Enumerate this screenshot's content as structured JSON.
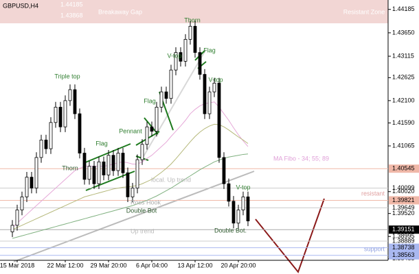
{
  "chart_data": {
    "type": "candlestick",
    "title": "GBPUSD,H4",
    "categories": [
      null,
      "15 Mar 2018",
      null,
      null,
      null,
      null,
      null,
      null,
      null,
      null,
      null,
      "22 Mar 12:00",
      null,
      null,
      null,
      null,
      null,
      null,
      null,
      null,
      "29 Mar 20:00",
      null,
      null,
      null,
      null,
      null,
      null,
      null,
      null,
      "6 Apr 04:00",
      null,
      null,
      null,
      null,
      null,
      null,
      null,
      null,
      "13 Apr 12:00",
      null,
      null,
      null,
      null,
      null,
      null,
      null,
      null,
      "20 Apr 20:00",
      null,
      null
    ],
    "open": [
      1.391,
      1.3925,
      1.396,
      1.399,
      1.4035,
      1.401,
      1.408,
      1.412,
      1.41,
      1.416,
      1.4195,
      1.415,
      1.421,
      1.4235,
      1.418,
      1.409,
      1.403,
      1.406,
      1.402,
      1.407,
      1.404,
      1.4085,
      1.405,
      1.409,
      1.4045,
      1.399,
      1.401,
      1.4075,
      1.411,
      1.415,
      1.414,
      1.4195,
      1.423,
      1.4215,
      1.428,
      1.432,
      1.43,
      1.435,
      1.438,
      1.432,
      1.427,
      1.418,
      1.423,
      1.425,
      1.408,
      1.402,
      1.398,
      1.393,
      1.396,
      1.399
    ],
    "high": [
      1.3937,
      1.3972,
      1.4002,
      1.4047,
      1.4047,
      1.4092,
      1.4132,
      1.4132,
      1.4172,
      1.4207,
      1.4207,
      1.4222,
      1.4247,
      1.4247,
      1.4192,
      1.4102,
      1.4072,
      1.4072,
      1.4082,
      1.4082,
      1.4097,
      1.4097,
      1.4102,
      1.4102,
      1.4057,
      1.4022,
      1.4087,
      1.4122,
      1.4162,
      1.4162,
      1.4207,
      1.4242,
      1.4242,
      1.4292,
      1.4332,
      1.4332,
      1.4362,
      1.4392,
      1.4392,
      1.4332,
      1.4282,
      1.4242,
      1.4262,
      1.4262,
      1.4092,
      1.4032,
      1.3992,
      1.3972,
      1.4002,
      1.4002
    ],
    "low": [
      1.3898,
      1.3913,
      1.3948,
      1.3978,
      1.3998,
      1.3998,
      1.4068,
      1.4088,
      1.4088,
      1.4148,
      1.4138,
      1.4138,
      1.4198,
      1.4168,
      1.4078,
      1.4018,
      1.4018,
      1.4008,
      1.4008,
      1.4028,
      1.4028,
      1.4038,
      1.4038,
      1.4033,
      1.3978,
      1.3978,
      1.3998,
      1.4063,
      1.4098,
      1.4128,
      1.4128,
      1.4183,
      1.4203,
      1.4203,
      1.4268,
      1.4288,
      1.4288,
      1.4338,
      1.4308,
      1.4258,
      1.4168,
      1.4168,
      1.4218,
      1.4068,
      1.4008,
      1.3968,
      1.3918,
      1.3918,
      1.3948,
      1.3923
    ],
    "close": [
      1.3925,
      1.396,
      1.399,
      1.4035,
      1.401,
      1.408,
      1.412,
      1.41,
      1.416,
      1.4195,
      1.415,
      1.421,
      1.4235,
      1.418,
      1.409,
      1.403,
      1.406,
      1.402,
      1.407,
      1.404,
      1.4085,
      1.405,
      1.409,
      1.4045,
      1.399,
      1.401,
      1.4075,
      1.411,
      1.415,
      1.414,
      1.4195,
      1.423,
      1.4215,
      1.428,
      1.432,
      1.43,
      1.435,
      1.438,
      1.432,
      1.427,
      1.418,
      1.423,
      1.425,
      1.408,
      1.402,
      1.398,
      1.393,
      1.396,
      1.399,
      1.3935
    ],
    "series": [
      {
        "color": "#e6a8d8",
        "values": [
          1.392,
          1.393,
          1.394,
          1.395,
          1.396,
          1.397,
          1.398,
          1.399,
          1.4,
          1.401,
          1.402,
          1.403,
          1.404,
          1.405,
          1.4055,
          1.406,
          1.406,
          1.406,
          1.406,
          1.406,
          1.4062,
          1.4065,
          1.4068,
          1.407,
          1.4068,
          1.4065,
          1.4065,
          1.407,
          1.4078,
          1.4085,
          1.4095,
          1.4105,
          1.4115,
          1.4128,
          1.414,
          1.4152,
          1.4165,
          1.418,
          1.419,
          1.4198,
          1.4203,
          1.4205,
          1.4207,
          1.4195,
          1.418,
          1.4165,
          1.4148,
          1.4132,
          1.4118,
          1.4105
        ]
      },
      {
        "color": "#b5b87a",
        "values": [
          1.3915,
          1.392,
          1.3925,
          1.393,
          1.3935,
          1.394,
          1.3945,
          1.395,
          1.3955,
          1.396,
          1.3965,
          1.397,
          1.3975,
          1.398,
          1.3985,
          1.399,
          1.3993,
          1.3996,
          1.3999,
          1.4002,
          1.4005,
          1.4008,
          1.401,
          1.4012,
          1.4013,
          1.4014,
          1.4016,
          1.402,
          1.4025,
          1.403,
          1.4038,
          1.4046,
          1.4055,
          1.4065,
          1.4077,
          1.409,
          1.4103,
          1.4116,
          1.4128,
          1.4138,
          1.4146,
          1.4152,
          1.4156,
          1.4155,
          1.415,
          1.4143,
          1.4135,
          1.4127,
          1.412,
          1.4112
        ]
      },
      {
        "color": "#7fb07f",
        "values": [
          1.3895,
          1.3898,
          1.3901,
          1.3904,
          1.3907,
          1.391,
          1.3913,
          1.3916,
          1.3919,
          1.3922,
          1.3925,
          1.3928,
          1.3931,
          1.3934,
          1.3937,
          1.394,
          1.3943,
          1.3946,
          1.3949,
          1.3952,
          1.3955,
          1.3958,
          1.3961,
          1.3964,
          1.3967,
          1.397,
          1.3974,
          1.3978,
          1.3982,
          1.3987,
          1.3992,
          1.3998,
          1.4004,
          1.401,
          1.4017,
          1.4024,
          1.4031,
          1.4038,
          1.4045,
          1.4052,
          1.4058,
          1.4064,
          1.407,
          1.4074,
          1.4078,
          1.4081,
          1.4083,
          1.4085,
          1.4087,
          1.4088
        ]
      }
    ],
    "ylim": [
      1.3845,
      1.444
    ],
    "yticks": [
      1.44185,
      {
        "value": 1.4365,
        "label": "1.43650"
      },
      1.43115,
      1.42625,
      {
        "value": 1.421,
        "label": "1.42100"
      },
      {
        "value": 1.4159,
        "label": "1.41590"
      },
      1.41065,
      {
        "value": 1.4002,
        "label": "1.40020"
      },
      {
        "value": 1.3952,
        "label": "1.39520"
      },
      1.38995,
      1.38485
    ],
    "levels": [
      {
        "value": 1.40545,
        "color": "#f0b8a8"
      },
      {
        "value": 1.40099,
        "color": "#cccccc"
      },
      {
        "value": 1.39821,
        "color": "#f0b8a8"
      },
      {
        "value": 1.39649,
        "color": "#cccccc"
      },
      {
        "value": 1.39151,
        "color": "#000000"
      },
      {
        "value": 1.38889,
        "color": "#cccccc"
      },
      {
        "value": 1.38738,
        "color": "#a9b8f0"
      },
      {
        "value": 1.38563,
        "color": "#a9b8f0"
      }
    ],
    "gap_levels": [
      1.44185,
      1.43868
    ],
    "annotations": [
      {
        "text": "Triple top",
        "color": "#2e7d2e"
      },
      {
        "text": "Thorn",
        "color": "#2e7d2e"
      },
      {
        "text": "Thorn",
        "color": "#2e5a2e"
      },
      {
        "text": "Flag",
        "color": "#2e7d2e"
      },
      {
        "text": "Flag",
        "color": "#2e7d2e"
      },
      {
        "text": "Flag",
        "color": "#2e7d2e"
      },
      {
        "text": "Pennant",
        "color": "#2e7d2e"
      },
      {
        "text": "V-top",
        "color": "#2e7d2e"
      },
      {
        "text": "V-top",
        "color": "#2e7d2e"
      },
      {
        "text": "V-top",
        "color": "#2e7d2e"
      },
      {
        "text": "local. Up trend",
        "color": "#bbbbbb"
      },
      {
        "text": "Ross Hook",
        "color": "#aaaaaa"
      },
      {
        "text": "Double Bot",
        "color": "#2e5a2e"
      },
      {
        "text": "Up trend",
        "color": "#bbbbbb"
      },
      {
        "text": "Double Bot.",
        "color": "#2e5a2e"
      },
      {
        "text": "MA Fibo - 34; 55; 89",
        "color": "#e0a0d8"
      },
      {
        "text": "resistant",
        "color": "#e0a0a0"
      },
      {
        "text": "support",
        "color": "#8fa0e0"
      },
      {
        "text": "Breakaway Gap",
        "color": "#ffffff"
      },
      {
        "text": "Resistant Zone",
        "color": "#ffffff"
      }
    ]
  }
}
